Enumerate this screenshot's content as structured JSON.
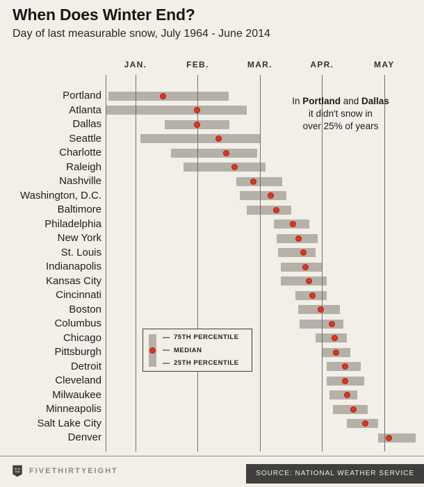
{
  "page": {
    "background": "#f1efe8"
  },
  "header": {
    "title": "When Does Winter End?",
    "subtitle": "Day of last measurable snow, July 1964 - June 2014"
  },
  "annotation": {
    "pre": "In ",
    "bold1": "Portland",
    "mid": " and ",
    "bold2": "Dallas",
    "line2": "it didn't snow in",
    "line3": "over 25% of years"
  },
  "legend": {
    "items": [
      "75TH PERCENTILE",
      "MEDIAN",
      "25TH PERCENTILE"
    ]
  },
  "footer": {
    "brand": "FIVETHIRTYEIGHT",
    "source": "SOURCE: NATIONAL WEATHER SERVICE"
  },
  "chart_data": {
    "type": "range-dot",
    "title": "When Does Winter End?",
    "subtitle": "Day of last measurable snow, July 1964 - June 2014",
    "x_axis": {
      "labels": [
        "JAN.",
        "FEB.",
        "MAR.",
        "APR.",
        "MAY"
      ],
      "tick_values": [
        1,
        2,
        3,
        4,
        5
      ],
      "min": 0.52,
      "max": 5.55,
      "unit": "month scale: 1.0 = Jan 1, 2.0 = Feb 1, 3.0 = Mar 1, 4.0 = Apr 1, 5.0 = May 1"
    },
    "grid": "vertical-only",
    "legend_position": "inside-lower-left",
    "colors": {
      "bar": "#b5b1a8",
      "median": "#e5331c",
      "gridline": "#716e68",
      "background": "#f1efe8"
    },
    "rows": [
      {
        "city": "Portland",
        "p25": 0.56,
        "median": 1.44,
        "p75": 2.5
      },
      {
        "city": "Atlanta",
        "p25": 0.53,
        "median": 1.99,
        "p75": 2.79
      },
      {
        "city": "Dallas",
        "p25": 1.47,
        "median": 1.99,
        "p75": 2.51
      },
      {
        "city": "Seattle",
        "p25": 1.08,
        "median": 2.34,
        "p75": 3.01
      },
      {
        "city": "Charlotte",
        "p25": 1.57,
        "median": 2.46,
        "p75": 2.96
      },
      {
        "city": "Raleigh",
        "p25": 1.77,
        "median": 2.59,
        "p75": 3.09
      },
      {
        "city": "Nashville",
        "p25": 2.62,
        "median": 2.9,
        "p75": 3.36
      },
      {
        "city": "Washington, D.C.",
        "p25": 2.68,
        "median": 3.18,
        "p75": 3.43
      },
      {
        "city": "Baltimore",
        "p25": 2.79,
        "median": 3.26,
        "p75": 3.51
      },
      {
        "city": "Philadelphia",
        "p25": 3.23,
        "median": 3.53,
        "p75": 3.8
      },
      {
        "city": "New York",
        "p25": 3.27,
        "median": 3.62,
        "p75": 3.93
      },
      {
        "city": "St. Louis",
        "p25": 3.29,
        "median": 3.7,
        "p75": 3.9
      },
      {
        "city": "Indianapolis",
        "p25": 3.34,
        "median": 3.73,
        "p75": 4.01
      },
      {
        "city": "Kansas City",
        "p25": 3.34,
        "median": 3.79,
        "p75": 4.07
      },
      {
        "city": "Cincinnati",
        "p25": 3.57,
        "median": 3.84,
        "p75": 4.07
      },
      {
        "city": "Boston",
        "p25": 3.62,
        "median": 3.98,
        "p75": 4.29
      },
      {
        "city": "Columbus",
        "p25": 3.64,
        "median": 4.16,
        "p75": 4.34
      },
      {
        "city": "Chicago",
        "p25": 3.9,
        "median": 4.2,
        "p75": 4.4
      },
      {
        "city": "Pittsburgh",
        "p25": 4.01,
        "median": 4.23,
        "p75": 4.46
      },
      {
        "city": "Detroit",
        "p25": 4.07,
        "median": 4.37,
        "p75": 4.62
      },
      {
        "city": "Cleveland",
        "p25": 4.07,
        "median": 4.37,
        "p75": 4.68
      },
      {
        "city": "Milwaukee",
        "p25": 4.12,
        "median": 4.4,
        "p75": 4.57
      },
      {
        "city": "Minneapolis",
        "p25": 4.18,
        "median": 4.51,
        "p75": 4.73
      },
      {
        "city": "Salt Lake City",
        "p25": 4.4,
        "median": 4.7,
        "p75": 4.9
      },
      {
        "city": "Denver",
        "p25": 4.9,
        "median": 5.07,
        "p75": 5.51
      }
    ]
  }
}
